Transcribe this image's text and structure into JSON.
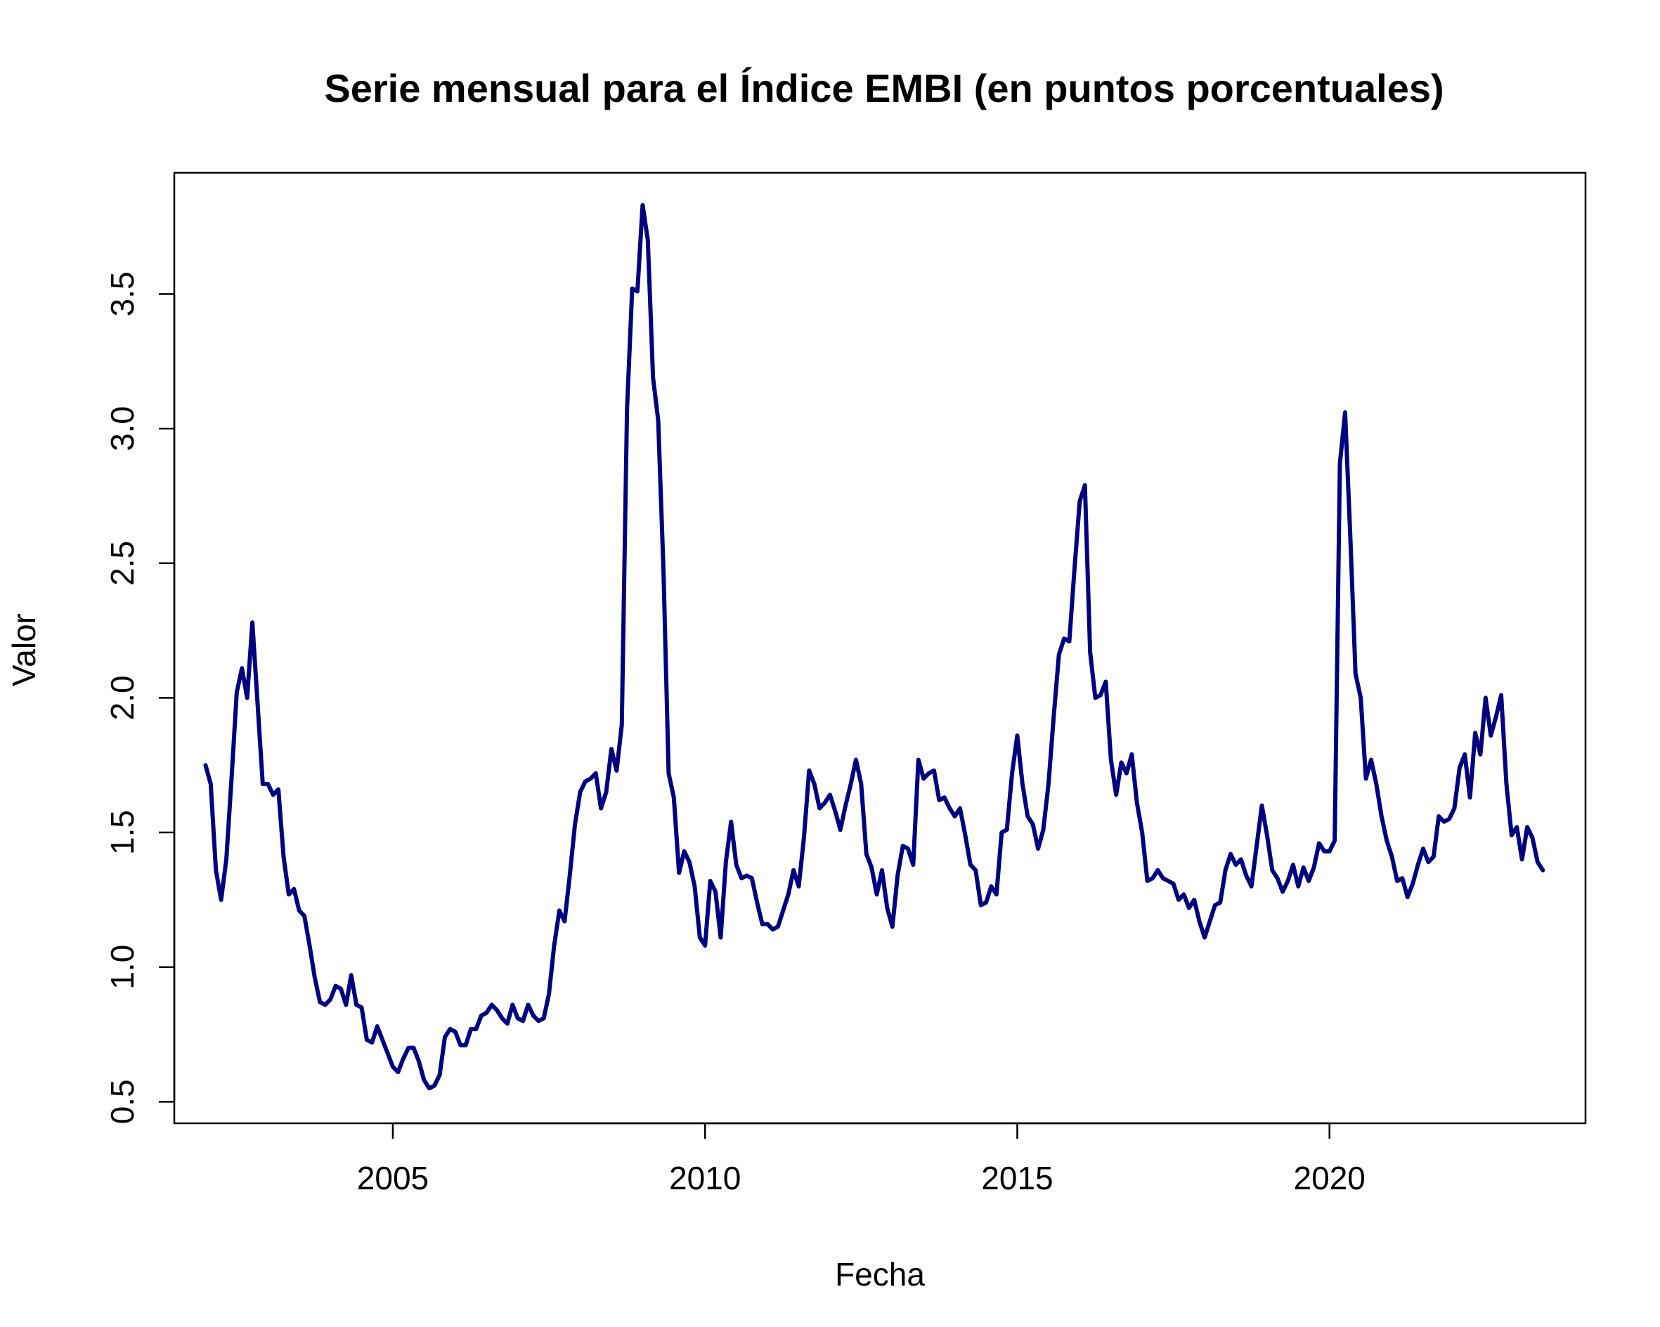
{
  "chart_data": {
    "type": "line",
    "title": "Serie mensual para el Índice EMBI (en puntos porcentuales)",
    "xlabel": "Fecha",
    "ylabel": "Valor",
    "xlim": [
      2001.5,
      2024.1
    ],
    "ylim": [
      0.42,
      3.95
    ],
    "x_ticks": [
      2005,
      2010,
      2015,
      2020
    ],
    "y_ticks": [
      0.5,
      1.0,
      1.5,
      2.0,
      2.5,
      3.0,
      3.5
    ],
    "y_tick_labels": [
      "0.5",
      "1.0",
      "1.5",
      "2.0",
      "2.5",
      "3.0",
      "3.5"
    ],
    "grid": false,
    "line_color": "#000080",
    "x_start": 2002.0,
    "x_step": 0.0833333,
    "values": [
      1.75,
      1.68,
      1.36,
      1.25,
      1.4,
      1.7,
      2.02,
      2.11,
      2.0,
      2.28,
      1.98,
      1.68,
      1.68,
      1.64,
      1.66,
      1.41,
      1.27,
      1.29,
      1.21,
      1.19,
      1.08,
      0.96,
      0.87,
      0.86,
      0.88,
      0.93,
      0.92,
      0.86,
      0.97,
      0.86,
      0.85,
      0.73,
      0.72,
      0.78,
      0.73,
      0.68,
      0.63,
      0.61,
      0.66,
      0.7,
      0.7,
      0.65,
      0.58,
      0.55,
      0.56,
      0.6,
      0.74,
      0.77,
      0.76,
      0.71,
      0.71,
      0.77,
      0.77,
      0.82,
      0.83,
      0.86,
      0.84,
      0.81,
      0.79,
      0.86,
      0.81,
      0.8,
      0.86,
      0.82,
      0.8,
      0.81,
      0.9,
      1.08,
      1.21,
      1.17,
      1.34,
      1.53,
      1.65,
      1.69,
      1.7,
      1.72,
      1.59,
      1.65,
      1.81,
      1.73,
      1.9,
      3.07,
      3.52,
      3.51,
      3.83,
      3.7,
      3.19,
      3.03,
      2.48,
      1.72,
      1.63,
      1.35,
      1.43,
      1.39,
      1.3,
      1.11,
      1.08,
      1.32,
      1.28,
      1.11,
      1.39,
      1.54,
      1.38,
      1.33,
      1.34,
      1.33,
      1.24,
      1.16,
      1.16,
      1.14,
      1.15,
      1.21,
      1.27,
      1.36,
      1.3,
      1.48,
      1.73,
      1.68,
      1.59,
      1.61,
      1.64,
      1.58,
      1.51,
      1.6,
      1.68,
      1.77,
      1.68,
      1.42,
      1.37,
      1.27,
      1.36,
      1.22,
      1.15,
      1.34,
      1.45,
      1.44,
      1.38,
      1.77,
      1.7,
      1.72,
      1.73,
      1.62,
      1.63,
      1.59,
      1.56,
      1.59,
      1.49,
      1.38,
      1.36,
      1.23,
      1.24,
      1.3,
      1.27,
      1.5,
      1.51,
      1.72,
      1.86,
      1.68,
      1.56,
      1.53,
      1.44,
      1.51,
      1.68,
      1.93,
      2.16,
      2.22,
      2.21,
      2.48,
      2.73,
      2.79,
      2.17,
      2.0,
      2.01,
      2.06,
      1.77,
      1.64,
      1.76,
      1.72,
      1.79,
      1.61,
      1.5,
      1.32,
      1.33,
      1.36,
      1.33,
      1.32,
      1.31,
      1.25,
      1.27,
      1.22,
      1.25,
      1.17,
      1.11,
      1.17,
      1.23,
      1.24,
      1.36,
      1.42,
      1.38,
      1.4,
      1.34,
      1.3,
      1.45,
      1.6,
      1.49,
      1.36,
      1.33,
      1.28,
      1.32,
      1.38,
      1.3,
      1.37,
      1.32,
      1.37,
      1.46,
      1.43,
      1.43,
      1.47,
      2.87,
      3.06,
      2.6,
      2.09,
      2.0,
      1.7,
      1.77,
      1.68,
      1.56,
      1.47,
      1.41,
      1.32,
      1.33,
      1.26,
      1.31,
      1.38,
      1.44,
      1.39,
      1.41,
      1.56,
      1.54,
      1.55,
      1.59,
      1.74,
      1.79,
      1.63,
      1.87,
      1.79,
      2.0,
      1.86,
      1.93,
      2.01,
      1.68,
      1.49,
      1.52,
      1.4,
      1.52,
      1.48,
      1.39,
      1.36
    ]
  }
}
